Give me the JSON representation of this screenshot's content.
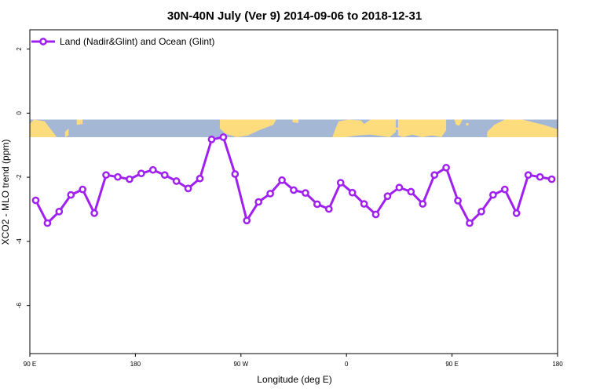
{
  "chart_data": {
    "type": "line",
    "title": "30N-40N July (Ver 9)   2014-09-06 to 2018-12-31",
    "xlabel": "Longitude (deg E)",
    "ylabel": "XCO2 - MLO trend (ppm)",
    "xlim": [
      90,
      540
    ],
    "ylim": [
      -7.5,
      2.6
    ],
    "x_ticks": [
      {
        "value": 90,
        "label": "90 E"
      },
      {
        "value": 180,
        "label": "180"
      },
      {
        "value": 270,
        "label": "90 W"
      },
      {
        "value": 360,
        "label": "0"
      },
      {
        "value": 450,
        "label": "90 E"
      },
      {
        "value": 540,
        "label": "180"
      }
    ],
    "y_ticks": [
      {
        "value": 2,
        "label": "2"
      },
      {
        "value": 0,
        "label": "0"
      },
      {
        "value": -2,
        "label": "-2"
      },
      {
        "value": -4,
        "label": "-4"
      },
      {
        "value": -6,
        "label": "-6"
      }
    ],
    "grid": false,
    "legend_position": "top-left",
    "map_strip": {
      "y_range": [
        -0.75,
        -0.2
      ],
      "ocean_color": "#a4b8d6",
      "land_color": "#fddc7e"
    },
    "series": [
      {
        "name": "Land (Nadir&Glint) and Ocean (Glint)",
        "color": "#a020f0",
        "x": [
          95,
          105,
          115,
          125,
          135,
          145,
          155,
          165,
          175,
          185,
          195,
          205,
          215,
          225,
          235,
          245,
          255,
          265,
          275,
          285,
          295,
          305,
          315,
          325,
          335,
          345,
          355,
          365,
          375,
          385,
          395,
          405,
          415,
          425,
          435,
          445,
          455,
          465,
          475,
          485,
          495,
          505,
          515,
          525,
          535
        ],
        "y": [
          -2.72,
          -3.43,
          -3.07,
          -2.55,
          -2.38,
          -3.12,
          -1.93,
          -1.99,
          -2.06,
          -1.88,
          -1.77,
          -1.93,
          -2.12,
          -2.35,
          -2.04,
          -0.82,
          -0.75,
          -1.9,
          -3.35,
          -2.77,
          -2.51,
          -2.09,
          -2.4,
          -2.49,
          -2.84,
          -2.99,
          -2.17,
          -2.48,
          -2.83,
          -3.16,
          -2.59,
          -2.32,
          -2.45,
          -2.83,
          -1.93,
          -1.7,
          -2.73,
          -3.43,
          -3.07,
          -2.55,
          -2.38,
          -3.12,
          -1.93,
          -1.99,
          -2.06
        ]
      }
    ]
  }
}
